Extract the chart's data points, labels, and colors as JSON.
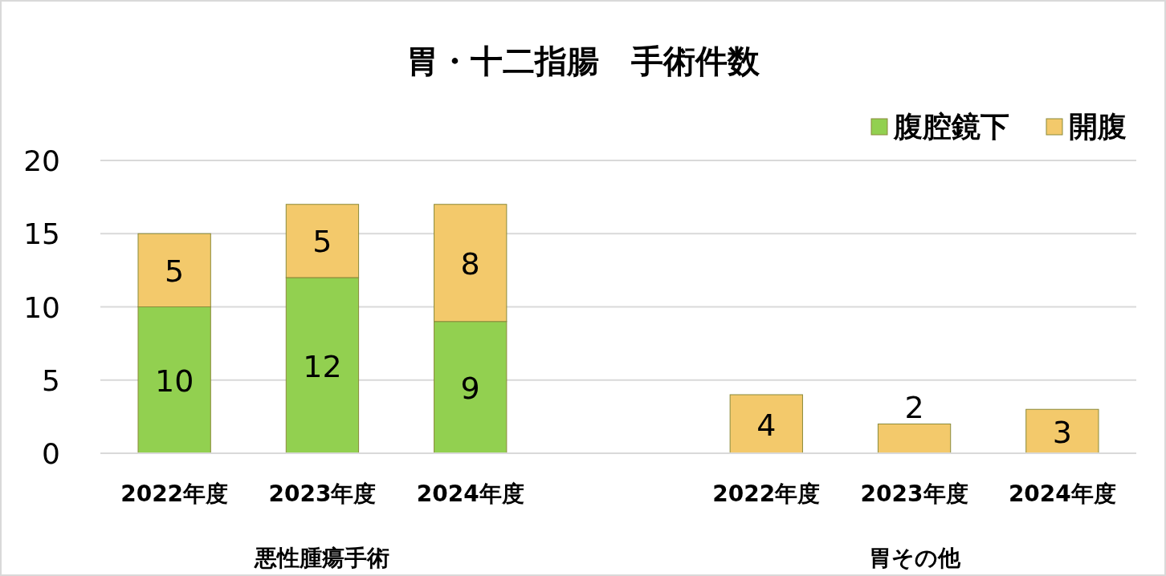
{
  "chart_data": {
    "type": "bar",
    "title": "胃・十二指腸　手術件数",
    "stacked": true,
    "categories": [
      "2022年度",
      "2023年度",
      "2024年度",
      null,
      "2022年度",
      "2023年度",
      "2024年度"
    ],
    "series": [
      {
        "name": "腹腔鏡下",
        "color": "#92d050",
        "values": [
          10,
          12,
          9,
          null,
          null,
          null,
          null
        ]
      },
      {
        "name": "開腹",
        "color": "#f3c96b",
        "values": [
          5,
          5,
          8,
          null,
          4,
          2,
          3
        ]
      }
    ],
    "annotations": [
      "悪性腫瘍手術",
      "胃その他"
    ],
    "ylim": [
      0,
      20
    ],
    "yticks": [
      0,
      5,
      10,
      15,
      20
    ],
    "grid": "y",
    "legend": "top right",
    "data_labels": true
  }
}
